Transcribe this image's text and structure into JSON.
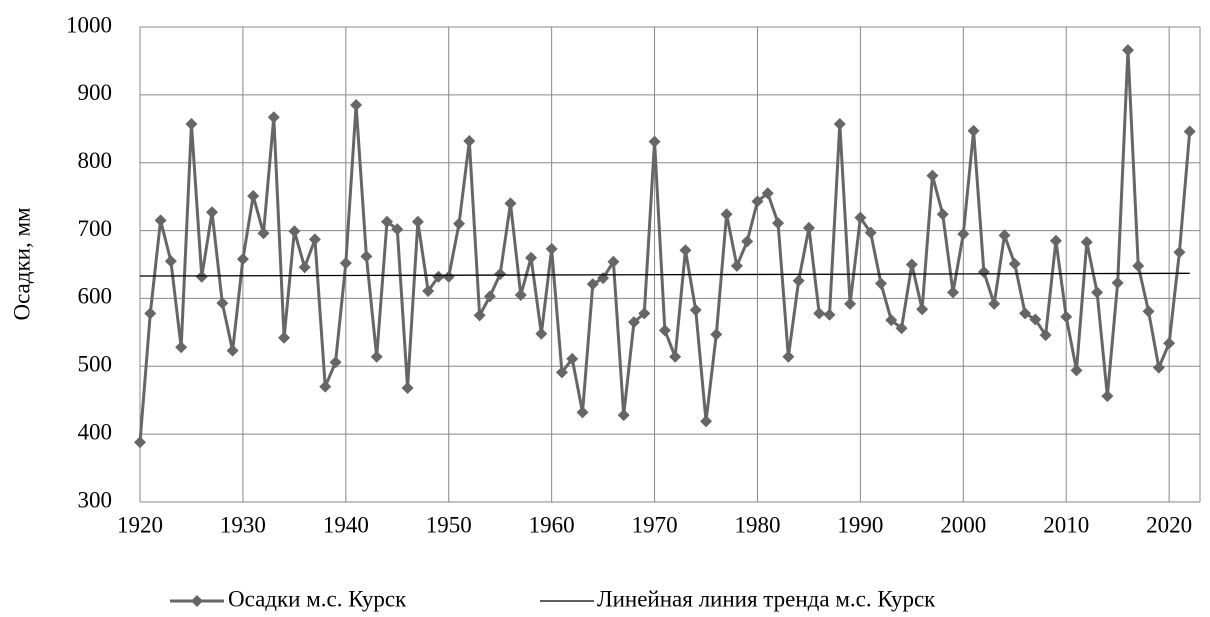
{
  "chart_data": {
    "type": "line",
    "y_label": "Осадки, мм",
    "xlim": [
      1920,
      2023
    ],
    "xticks": [
      1920,
      1930,
      1940,
      1950,
      1960,
      1970,
      1980,
      1990,
      2000,
      2010,
      2020
    ],
    "ylim": [
      300,
      1000
    ],
    "yticks": [
      300,
      400,
      500,
      600,
      700,
      800,
      900,
      1000
    ],
    "grid": true,
    "legend": "bottom",
    "series": [
      {
        "name": "Осадки м.с. Курск",
        "color": "#666666",
        "marker": "diamond",
        "x": [
          1920,
          1921,
          1922,
          1923,
          1924,
          1925,
          1926,
          1927,
          1928,
          1929,
          1930,
          1931,
          1932,
          1933,
          1934,
          1935,
          1936,
          1937,
          1938,
          1939,
          1940,
          1941,
          1942,
          1943,
          1944,
          1945,
          1946,
          1947,
          1948,
          1949,
          1950,
          1951,
          1952,
          1953,
          1954,
          1955,
          1956,
          1957,
          1958,
          1959,
          1960,
          1961,
          1962,
          1963,
          1964,
          1965,
          1966,
          1967,
          1968,
          1969,
          1970,
          1971,
          1972,
          1973,
          1974,
          1975,
          1976,
          1977,
          1978,
          1979,
          1980,
          1981,
          1982,
          1983,
          1984,
          1985,
          1986,
          1987,
          1988,
          1989,
          1990,
          1991,
          1992,
          1993,
          1994,
          1995,
          1996,
          1997,
          1998,
          1999,
          2000,
          2001,
          2002,
          2003,
          2004,
          2005,
          2006,
          2007,
          2008,
          2009,
          2010,
          2011,
          2012,
          2013,
          2014,
          2015,
          2016,
          2017,
          2018,
          2019,
          2020,
          2021,
          2022
        ],
        "values": [
          388,
          578,
          715,
          655,
          528,
          857,
          632,
          727,
          593,
          523,
          658,
          751,
          696,
          867,
          542,
          699,
          646,
          687,
          470,
          506,
          652,
          885,
          662,
          514,
          713,
          702,
          468,
          713,
          611,
          632,
          632,
          710,
          832,
          575,
          603,
          636,
          740,
          605,
          660,
          548,
          673,
          491,
          511,
          432,
          621,
          630,
          654,
          428,
          565,
          578,
          831,
          553,
          514,
          671,
          583,
          419,
          547,
          724,
          648,
          684,
          743,
          755,
          711,
          514,
          626,
          704,
          578,
          576,
          857,
          592,
          719,
          697,
          622,
          568,
          556,
          650,
          584,
          781,
          724,
          609,
          695,
          847,
          639,
          592,
          693,
          651,
          578,
          569,
          546,
          685,
          573,
          494,
          683,
          609,
          456,
          623,
          966,
          648,
          581,
          498,
          534,
          668,
          846
        ]
      },
      {
        "name": "Линейная линия тренда м.с. Курск",
        "color": "#000000",
        "marker": "none",
        "x": [
          1920,
          2022
        ],
        "values": [
          633,
          637
        ]
      }
    ]
  }
}
